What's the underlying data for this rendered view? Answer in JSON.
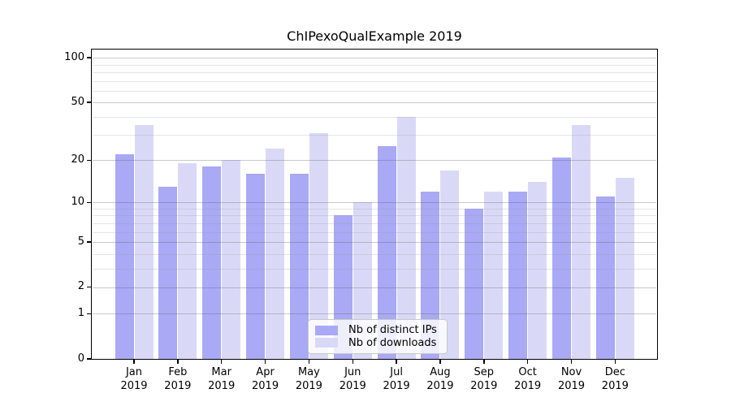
{
  "title": "ChIPexoQualExample 2019",
  "chart_data": {
    "type": "bar",
    "title": "ChIPexoQualExample 2019",
    "categories": [
      "Jan",
      "Feb",
      "Mar",
      "Apr",
      "May",
      "Jun",
      "Jul",
      "Aug",
      "Sep",
      "Oct",
      "Nov",
      "Dec"
    ],
    "year_label": "2019",
    "series": [
      {
        "name": "Nb of distinct IPs",
        "color": "#a9a9f5",
        "values": [
          22,
          13,
          18,
          16,
          16,
          8,
          25,
          12,
          9,
          12,
          21,
          11
        ]
      },
      {
        "name": "Nb of downloads",
        "color": "#d9d9f7",
        "values": [
          35,
          19,
          20,
          24,
          31,
          10,
          40,
          17,
          12,
          14,
          35,
          15
        ]
      }
    ],
    "y_axis": {
      "scale": "log1p",
      "ticks": [
        0,
        1,
        2,
        5,
        10,
        20,
        50,
        100
      ],
      "tick_labels": [
        "0",
        "1",
        "2",
        "5",
        "10",
        "20",
        "50",
        "100"
      ],
      "minor_ticks": [
        3,
        4,
        6,
        7,
        8,
        9,
        30,
        40,
        60,
        70,
        80,
        90
      ]
    },
    "legend_position": "bottom-center",
    "grid": true
  }
}
